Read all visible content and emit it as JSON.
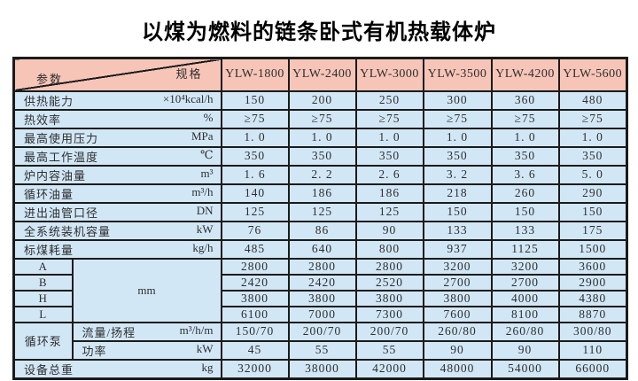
{
  "title": "以煤为燃料的链条卧式有机热载体炉",
  "table": {
    "corner": {
      "top_right": "规格",
      "bottom_left": "参数"
    },
    "columns": [
      "YLW-1800",
      "YLW-2400",
      "YLW-3000",
      "YLW-3500",
      "YLW-4200",
      "YLW-5600"
    ],
    "rows": [
      {
        "name": "供热能力",
        "unit": "×10⁴kcal/h",
        "values": [
          "150",
          "200",
          "250",
          "300",
          "360",
          "480"
        ]
      },
      {
        "name": "热效率",
        "unit": "%",
        "values": [
          "≥75",
          "≥75",
          "≥75",
          "≥75",
          "≥75",
          "≥75"
        ]
      },
      {
        "name": "最高使用压力",
        "unit": "MPa",
        "values": [
          "1. 0",
          "1. 0",
          "1. 0",
          "1. 0",
          "1. 0",
          "1. 0"
        ]
      },
      {
        "name": "最高工作温度",
        "unit": "℃",
        "values": [
          "350",
          "350",
          "350",
          "350",
          "350",
          "350"
        ]
      },
      {
        "name": "炉内容油量",
        "unit": "m³",
        "values": [
          "1. 6",
          "2. 2",
          "2. 6",
          "3. 2",
          "3. 6",
          "5. 0"
        ]
      },
      {
        "name": "循环油量",
        "unit": "m³/h",
        "values": [
          "140",
          "186",
          "186",
          "218",
          "260",
          "290"
        ]
      },
      {
        "name": "进出油管口径",
        "unit": "DN",
        "values": [
          "125",
          "125",
          "125",
          "150",
          "150",
          "150"
        ]
      },
      {
        "name": "全系统装机容量",
        "unit": "kW",
        "values": [
          "76",
          "86",
          "90",
          "133",
          "133",
          "175"
        ]
      },
      {
        "name": "标煤耗量",
        "unit": "kg/h",
        "values": [
          "485",
          "640",
          "800",
          "937",
          "1125",
          "1500"
        ]
      }
    ],
    "dimensions": {
      "unit": "mm",
      "rows": [
        {
          "label": "A",
          "values": [
            "2800",
            "2800",
            "2800",
            "3200",
            "3200",
            "3600"
          ]
        },
        {
          "label": "B",
          "values": [
            "2420",
            "2420",
            "2520",
            "2700",
            "2700",
            "2900"
          ]
        },
        {
          "label": "H",
          "values": [
            "3800",
            "3800",
            "3800",
            "3800",
            "4000",
            "4380"
          ]
        },
        {
          "label": "L",
          "values": [
            "6100",
            "7000",
            "7300",
            "7600",
            "8100",
            "8870"
          ]
        }
      ]
    },
    "pump": {
      "label": "循环泵",
      "rows": [
        {
          "name": "流量/扬程",
          "unit": "m³/h/m",
          "values": [
            "150/70",
            "200/70",
            "200/70",
            "260/80",
            "260/80",
            "300/80"
          ]
        },
        {
          "name": "功率",
          "unit": "kW",
          "values": [
            "45",
            "55",
            "55",
            "90",
            "90",
            "110"
          ]
        }
      ]
    },
    "total_weight": {
      "name": "设备总重",
      "unit": "kg",
      "values": [
        "32000",
        "38000",
        "42000",
        "48000",
        "54000",
        "66000"
      ]
    }
  },
  "colors": {
    "header_bg": "#f7c5b8",
    "body_bg": "#d2e7f6",
    "border": "#1b1b1b",
    "text": "#2e2e2e"
  }
}
